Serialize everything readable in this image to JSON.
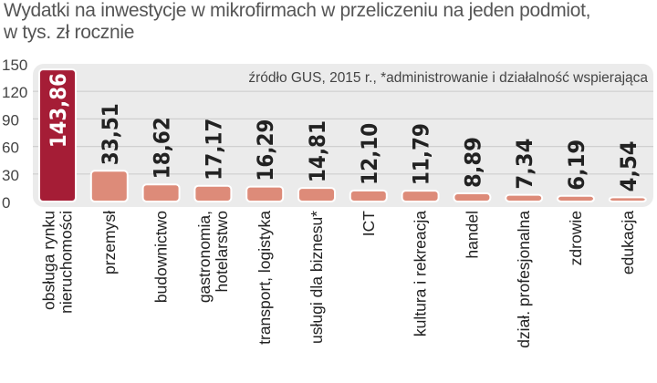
{
  "chart_data": {
    "type": "bar",
    "title_line1": "Wydatki na inwestycje w mikrofirmach w przeliczeniu na jeden podmiot,",
    "title_line2": "w tys. zł rocznie",
    "source_note": "źródło GUS, 2015 r., *administrowanie i działalność wspierająca",
    "categories": [
      [
        "obsługa rynku",
        "nieruchomości"
      ],
      [
        "przemysł"
      ],
      [
        "budownictwo"
      ],
      [
        "gastronomia,",
        "hotelarstwo"
      ],
      [
        "transport, logistyka"
      ],
      [
        "usługi dla biznesu*"
      ],
      [
        "ICT"
      ],
      [
        "kultura i rekreacja"
      ],
      [
        "handel"
      ],
      [
        "dział. profesjonalna"
      ],
      [
        "zdrowie"
      ],
      [
        "edukacja"
      ]
    ],
    "values": [
      143.86,
      33.51,
      18.62,
      17.17,
      16.29,
      14.81,
      12.1,
      11.79,
      8.89,
      7.34,
      6.19,
      4.54
    ],
    "value_labels": [
      "143,86",
      "33,51",
      "18,62",
      "17,17",
      "16,29",
      "14,81",
      "12,10",
      "11,79",
      "8,89",
      "7,34",
      "6,19",
      "4,54"
    ],
    "ylim": [
      0,
      150
    ],
    "yticks": [
      "0",
      "30",
      "60",
      "90",
      "120",
      "150"
    ],
    "grid": true,
    "colors": {
      "highlight": "#a51d36",
      "bar": "#dd8b79",
      "plot_bg": "#ebebeb",
      "grid": "#cfcfcf",
      "text": "#222222"
    }
  }
}
